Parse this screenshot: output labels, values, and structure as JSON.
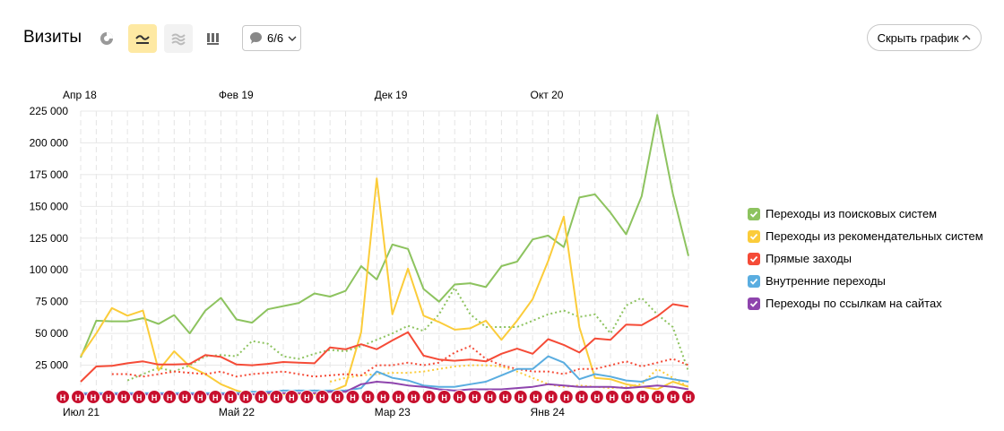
{
  "header": {
    "title": "Визиты",
    "segments_label": "6/6",
    "hide_chart_label": "Скрыть график"
  },
  "icons": {
    "pie": "pie-chart-icon",
    "line": "line-chart-icon",
    "area": "area-chart-icon",
    "bars": "bar-chart-icon",
    "comment": "comment-icon",
    "chevron": "chevron-down-icon",
    "chevron_up": "chevron-up-icon"
  },
  "legend": [
    {
      "label": "Переходы из поисковых систем",
      "color": "#8dc35f"
    },
    {
      "label": "Переходы из рекомендательных систем",
      "color": "#fbcc3a"
    },
    {
      "label": "Прямые заходы",
      "color": "#f54b37"
    },
    {
      "label": "Внутренние переходы",
      "color": "#5aade0"
    },
    {
      "label": "Переходы по ссылкам на сайтах",
      "color": "#8e44ad"
    }
  ],
  "chart_data": {
    "type": "line",
    "y_ticks": [
      "225 000",
      "200 000",
      "175 000",
      "150 000",
      "125 000",
      "100 000",
      "75 000",
      "50 000",
      "25 000",
      "0"
    ],
    "ylim": [
      0,
      225000
    ],
    "top_axis_labels": [
      {
        "label": "Апр 18",
        "index": 0
      },
      {
        "label": "Фев 19",
        "index": 10
      },
      {
        "label": "Дек 19",
        "index": 20
      },
      {
        "label": "Окт 20",
        "index": 30
      }
    ],
    "bottom_axis_labels": [
      {
        "label": "Июл 21",
        "index": 0
      },
      {
        "label": "Май 22",
        "index": 10
      },
      {
        "label": "Мар 23",
        "index": 20
      },
      {
        "label": "Янв 24",
        "index": 30
      }
    ],
    "marker_label": "Н",
    "n_points": 40,
    "series": [
      {
        "name": "Переходы из поисковых систем",
        "color": "#8dc35f",
        "dashed": false,
        "values": [
          31000,
          60000,
          59500,
          59500,
          62000,
          57500,
          64500,
          50000,
          68000,
          78000,
          61000,
          58500,
          69000,
          71500,
          74000,
          81500,
          79000,
          83500,
          103000,
          92500,
          120000,
          116500,
          85000,
          75000,
          88500,
          89500,
          86500,
          103000,
          106500,
          124000,
          127000,
          118000,
          157000,
          159500,
          145000,
          128000,
          158000,
          222000,
          160000,
          111000
        ]
      },
      {
        "name": "",
        "color": "#8dc35f",
        "dashed": true,
        "values": [
          null,
          null,
          null,
          13000,
          18000,
          23000,
          20000,
          25000,
          32000,
          33000,
          32000,
          44000,
          42000,
          32000,
          30000,
          34000,
          37000,
          36000,
          40000,
          45000,
          50000,
          56000,
          52000,
          65000,
          86000,
          65000,
          55000,
          55000,
          55000,
          60000,
          65000,
          68000,
          63000,
          65000,
          50000,
          72000,
          78000,
          65000,
          55000,
          20000
        ]
      },
      {
        "name": "Переходы из рекомендательных систем",
        "color": "#fbcc3a",
        "dashed": false,
        "values": [
          32000,
          50000,
          70000,
          64000,
          68000,
          21000,
          36000,
          24000,
          18000,
          10000,
          5000,
          2000,
          2000,
          2000,
          2000,
          2000,
          4000,
          9000,
          51000,
          172000,
          65000,
          101000,
          64000,
          59000,
          53000,
          54000,
          60000,
          45000,
          60000,
          77000,
          107000,
          142000,
          55000,
          15000,
          14000,
          10000,
          8000,
          6000,
          12000,
          8000
        ]
      },
      {
        "name": "",
        "color": "#fbcc3a",
        "dashed": true,
        "values": [
          null,
          null,
          null,
          null,
          null,
          null,
          null,
          null,
          null,
          null,
          null,
          null,
          null,
          null,
          null,
          null,
          12000,
          15000,
          17000,
          18000,
          19000,
          19000,
          20000,
          22000,
          24000,
          25000,
          25000,
          24000,
          20000,
          15000,
          10000,
          8000,
          9000,
          8000,
          7000,
          8000,
          10000,
          22000,
          15000,
          8000
        ]
      },
      {
        "name": "Прямые заходы",
        "color": "#f54b37",
        "dashed": false,
        "values": [
          12000,
          24000,
          24500,
          26500,
          28000,
          25500,
          25500,
          26000,
          33000,
          31500,
          25500,
          25000,
          26000,
          27500,
          27000,
          26500,
          39000,
          37500,
          41500,
          37500,
          44500,
          51000,
          32500,
          29500,
          28500,
          29500,
          28000,
          34000,
          38000,
          34000,
          45500,
          41000,
          35000,
          46000,
          45000,
          57000,
          56500,
          63500,
          73000,
          71000
        ]
      },
      {
        "name": "",
        "color": "#f54b37",
        "dashed": true,
        "values": [
          null,
          null,
          18000,
          18000,
          16000,
          18000,
          20000,
          19000,
          18000,
          20000,
          16000,
          18000,
          19000,
          20000,
          18000,
          16000,
          17000,
          18000,
          17000,
          25000,
          25000,
          27000,
          25000,
          27000,
          35000,
          40000,
          30000,
          25000,
          22000,
          20000,
          20000,
          18000,
          22000,
          22000,
          25000,
          28000,
          24000,
          27000,
          30000,
          25000
        ]
      },
      {
        "name": "Внутренние переходы",
        "color": "#5aade0",
        "dashed": false,
        "values": [
          3000,
          3000,
          3000,
          3000,
          3000,
          3000,
          3000,
          3000,
          3000,
          3000,
          3000,
          4000,
          4000,
          5000,
          5000,
          5000,
          5000,
          5000,
          7000,
          20000,
          15000,
          13000,
          9000,
          8000,
          8000,
          10000,
          12000,
          17000,
          22000,
          22000,
          32000,
          27000,
          14000,
          18000,
          16000,
          13000,
          12000,
          16000,
          14000,
          12000
        ]
      },
      {
        "name": "Переходы по ссылкам на сайтах",
        "color": "#8e44ad",
        "dashed": false,
        "values": [
          2000,
          2000,
          2000,
          2000,
          2000,
          2000,
          2000,
          2000,
          2000,
          2000,
          2000,
          2000,
          3000,
          3000,
          3000,
          3000,
          4000,
          4000,
          10000,
          12000,
          11000,
          9000,
          8000,
          6000,
          5000,
          6000,
          6000,
          6000,
          7000,
          8000,
          10000,
          9000,
          8000,
          8000,
          8000,
          7000,
          8000,
          9000,
          8000,
          6000
        ]
      }
    ]
  }
}
